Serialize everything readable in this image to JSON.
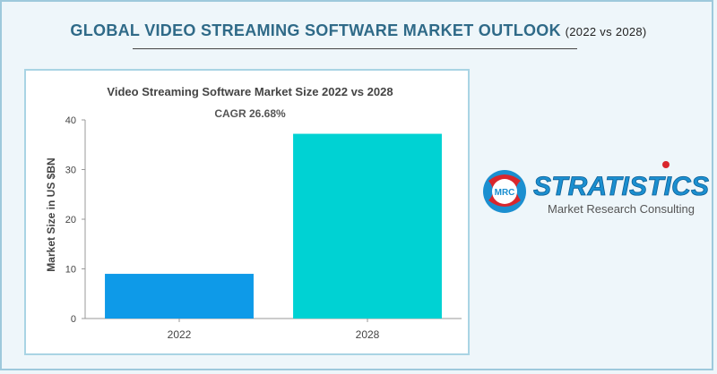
{
  "header": {
    "title": "GLOBAL VIDEO STREAMING SOFTWARE MARKET OUTLOOK",
    "subtitle": "(2022 vs 2028)"
  },
  "chart_data": {
    "type": "bar",
    "title": "Video Streaming Software Market Size 2022 vs 2028",
    "annotation": "CAGR 26.68%",
    "xlabel": "",
    "ylabel": "Market Size in US $BN",
    "categories": [
      "2022",
      "2028"
    ],
    "values": [
      9.0,
      37.2
    ],
    "colors": [
      "#0e9ae8",
      "#00d2d3"
    ],
    "ylim": [
      0,
      40
    ],
    "yticks": [
      0,
      10,
      20,
      30,
      40
    ],
    "grid": false
  },
  "logo": {
    "brand": "STRATISTICS",
    "badge": "MRC",
    "tagline": "Market Research Consulting",
    "brand_color": "#1b8fd0",
    "accent_color": "#d9262c"
  }
}
